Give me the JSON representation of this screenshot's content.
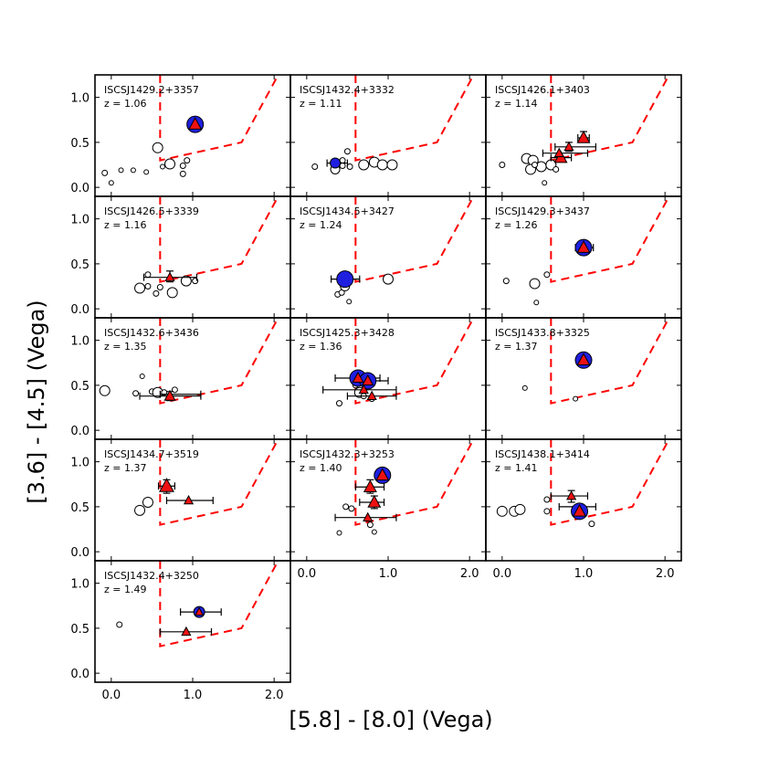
{
  "chart_data": {
    "type": "scatter",
    "xlabel": "[5.8] - [8.0] (Vega)",
    "ylabel": "[3.6] - [4.5] (Vega)",
    "xlim": [
      -0.2,
      2.2
    ],
    "ylim": [
      -0.1,
      1.25
    ],
    "xticks": [
      0.0,
      1.0,
      2.0
    ],
    "yticks": [
      0.0,
      0.5,
      1.0
    ],
    "xtick_labels": [
      "0.0",
      "1.0",
      "2.0"
    ],
    "ytick_labels": [
      "0.0",
      "0.5",
      "1.0"
    ],
    "selection_wedge": [
      [
        0.6,
        1.25
      ],
      [
        0.6,
        0.3
      ],
      [
        1.6,
        0.5
      ],
      [
        2.05,
        1.25
      ]
    ],
    "colors": {
      "wedge": "#ff0000",
      "agn_circle": "#1f1fe0",
      "agn_triangle": "#ee1111",
      "open": "#ffffff"
    },
    "panels": [
      {
        "name": "ISCSJ1429.2+3357",
        "z": "z = 1.06",
        "open": [
          [
            -0.08,
            0.16,
            3
          ],
          [
            0.0,
            0.05,
            2.5
          ],
          [
            0.12,
            0.19,
            2.5
          ],
          [
            0.27,
            0.19,
            2.5
          ],
          [
            0.43,
            0.17,
            2.5
          ],
          [
            0.57,
            0.44,
            5.5
          ],
          [
            0.63,
            0.23,
            2.5
          ],
          [
            0.72,
            0.26,
            5.5
          ],
          [
            0.88,
            0.24,
            3
          ],
          [
            0.88,
            0.15,
            3
          ],
          [
            0.93,
            0.3,
            3
          ]
        ],
        "blue": [
          [
            1.03,
            0.7,
            9
          ]
        ],
        "red": [
          [
            1.03,
            0.7,
            7
          ]
        ],
        "xerr": [],
        "yerr": []
      },
      {
        "name": "ISCSJ1432.4+3332",
        "z": "z = 1.11",
        "open": [
          [
            0.1,
            0.23,
            3
          ],
          [
            0.35,
            0.2,
            5
          ],
          [
            0.44,
            0.24,
            3
          ],
          [
            0.44,
            0.3,
            3
          ],
          [
            0.53,
            0.23,
            3
          ],
          [
            0.5,
            0.4,
            3
          ],
          [
            0.7,
            0.25,
            5.5
          ],
          [
            0.83,
            0.28,
            5.5
          ],
          [
            0.93,
            0.25,
            5.5
          ],
          [
            1.05,
            0.25,
            5.5
          ]
        ],
        "blue": [
          [
            0.35,
            0.27,
            5.5
          ]
        ],
        "red": [],
        "xerr": [
          [
            0.25,
            0.5,
            0.27
          ]
        ],
        "yerr": []
      },
      {
        "name": "ISCSJ1426.1+3403",
        "z": "z = 1.14",
        "open": [
          [
            0.0,
            0.25,
            3
          ],
          [
            0.3,
            0.32,
            5.5
          ],
          [
            0.38,
            0.3,
            5.5
          ],
          [
            0.35,
            0.2,
            5.5
          ],
          [
            0.48,
            0.23,
            5.5
          ],
          [
            0.6,
            0.25,
            5.5
          ],
          [
            0.52,
            0.05,
            2.5
          ],
          [
            0.66,
            0.2,
            3
          ],
          [
            0.4,
            0.25,
            3
          ]
        ],
        "blue": [],
        "red": [
          [
            1.0,
            0.55,
            7
          ],
          [
            0.82,
            0.45,
            5
          ],
          [
            0.72,
            0.33,
            7
          ],
          [
            0.7,
            0.38,
            5
          ]
        ],
        "xerr": [
          [
            0.93,
            1.07,
            0.55
          ],
          [
            0.5,
            1.05,
            0.38
          ],
          [
            0.65,
            1.15,
            0.45
          ],
          [
            0.6,
            0.85,
            0.33
          ]
        ],
        "yerr": [
          [
            1.0,
            0.5,
            0.62
          ],
          [
            0.82,
            0.4,
            0.5
          ]
        ]
      },
      {
        "name": "ISCSJ1426.5+3339",
        "z": "z = 1.16",
        "open": [
          [
            0.35,
            0.23,
            5.5
          ],
          [
            0.45,
            0.25,
            3
          ],
          [
            0.45,
            0.38,
            3
          ],
          [
            0.55,
            0.17,
            3
          ],
          [
            0.6,
            0.24,
            3
          ],
          [
            0.75,
            0.18,
            5.5
          ],
          [
            0.92,
            0.31,
            5.5
          ],
          [
            1.03,
            0.31,
            3
          ]
        ],
        "blue": [],
        "red": [
          [
            0.72,
            0.35,
            5
          ]
        ],
        "xerr": [
          [
            0.4,
            1.05,
            0.35
          ]
        ],
        "yerr": [
          [
            0.72,
            0.3,
            0.42
          ]
        ]
      },
      {
        "name": "ISCSJ1434.5+3427",
        "z": "z = 1.24",
        "open": [
          [
            0.38,
            0.16,
            3
          ],
          [
            0.43,
            0.18,
            3
          ],
          [
            0.52,
            0.08,
            2.5
          ],
          [
            0.47,
            0.25,
            5
          ],
          [
            1.0,
            0.33,
            5.5
          ]
        ],
        "blue": [
          [
            0.47,
            0.33,
            9
          ]
        ],
        "red": [],
        "xerr": [
          [
            0.3,
            0.65,
            0.33
          ]
        ],
        "yerr": []
      },
      {
        "name": "ISCSJ1429.3+3437",
        "z": "z = 1.26",
        "open": [
          [
            0.05,
            0.31,
            3
          ],
          [
            0.4,
            0.28,
            5.5
          ],
          [
            0.42,
            0.07,
            2.5
          ],
          [
            0.55,
            0.38,
            3
          ]
        ],
        "blue": [
          [
            1.0,
            0.68,
            9
          ]
        ],
        "red": [
          [
            1.0,
            0.68,
            7
          ]
        ],
        "xerr": [
          [
            0.9,
            1.12,
            0.68
          ]
        ],
        "yerr": []
      },
      {
        "name": "ISCSJ1432.6+3436",
        "z": "z = 1.35",
        "open": [
          [
            -0.08,
            0.44,
            5.5
          ],
          [
            0.3,
            0.41,
            3
          ],
          [
            0.38,
            0.6,
            2.5
          ],
          [
            0.5,
            0.43,
            3
          ],
          [
            0.57,
            0.42,
            5.5
          ],
          [
            0.65,
            0.42,
            3
          ],
          [
            0.78,
            0.45,
            3
          ]
        ],
        "blue": [],
        "red": [
          [
            0.72,
            0.38,
            6
          ]
        ],
        "xerr": [
          [
            0.35,
            1.1,
            0.38
          ],
          [
            0.6,
            1.1,
            0.4
          ]
        ],
        "yerr": [
          [
            0.72,
            0.33,
            0.43
          ]
        ]
      },
      {
        "name": "ISCSJ1425.3+3428",
        "z": "z = 1.36",
        "open": [
          [
            0.4,
            0.3,
            3
          ],
          [
            0.6,
            0.5,
            3
          ],
          [
            0.65,
            0.42,
            5.5
          ],
          [
            0.8,
            0.35,
            3
          ],
          [
            0.7,
            0.38,
            3
          ]
        ],
        "blue": [
          [
            0.63,
            0.58,
            9
          ],
          [
            0.75,
            0.55,
            9
          ]
        ],
        "red": [
          [
            0.63,
            0.58,
            6
          ],
          [
            0.75,
            0.55,
            6
          ],
          [
            0.7,
            0.45,
            5
          ],
          [
            0.8,
            0.38,
            5
          ]
        ],
        "xerr": [
          [
            0.35,
            0.9,
            0.58
          ],
          [
            0.6,
            1.0,
            0.55
          ],
          [
            0.2,
            1.1,
            0.45
          ],
          [
            0.5,
            1.1,
            0.38
          ]
        ],
        "yerr": [
          [
            0.63,
            0.5,
            0.66
          ],
          [
            0.75,
            0.48,
            0.62
          ]
        ]
      },
      {
        "name": "ISCSJ1433.8+3325",
        "z": "z = 1.37",
        "open": [
          [
            0.28,
            0.47,
            2.5
          ],
          [
            0.9,
            0.35,
            2.5
          ]
        ],
        "blue": [
          [
            1.0,
            0.78,
            9
          ]
        ],
        "red": [
          [
            1.0,
            0.78,
            7
          ]
        ],
        "xerr": [],
        "yerr": []
      },
      {
        "name": "ISCSJ1434.7+3519",
        "z": "z = 1.37",
        "open": [
          [
            0.35,
            0.46,
            5.5
          ],
          [
            0.45,
            0.55,
            5.5
          ]
        ],
        "blue": [],
        "red": [
          [
            0.68,
            0.73,
            8
          ],
          [
            0.95,
            0.57,
            5
          ]
        ],
        "xerr": [
          [
            0.58,
            0.78,
            0.73
          ],
          [
            0.68,
            1.25,
            0.57
          ]
        ],
        "yerr": [
          [
            0.68,
            0.65,
            0.8
          ]
        ]
      },
      {
        "name": "ISCSJ1432.3+3253",
        "z": "z = 1.40",
        "open": [
          [
            0.4,
            0.21,
            2.5
          ],
          [
            0.48,
            0.5,
            3
          ],
          [
            0.55,
            0.48,
            3
          ],
          [
            0.78,
            0.3,
            3
          ],
          [
            0.83,
            0.22,
            2.5
          ]
        ],
        "blue": [
          [
            0.93,
            0.85,
            9
          ]
        ],
        "red": [
          [
            0.93,
            0.85,
            7
          ],
          [
            0.78,
            0.72,
            7
          ],
          [
            0.83,
            0.55,
            7
          ],
          [
            0.75,
            0.38,
            5
          ]
        ],
        "xerr": [
          [
            0.6,
            0.95,
            0.72
          ],
          [
            0.65,
            0.95,
            0.55
          ],
          [
            0.35,
            1.1,
            0.38
          ]
        ],
        "yerr": [
          [
            0.78,
            0.65,
            0.8
          ],
          [
            0.83,
            0.48,
            0.62
          ],
          [
            0.93,
            0.8,
            0.9
          ]
        ]
      },
      {
        "name": "ISCSJ1438.1+3414",
        "z": "z = 1.41",
        "open": [
          [
            0.0,
            0.45,
            5.5
          ],
          [
            0.15,
            0.45,
            5.5
          ],
          [
            0.22,
            0.47,
            5.5
          ],
          [
            0.55,
            0.58,
            3
          ],
          [
            0.55,
            0.45,
            3
          ],
          [
            1.1,
            0.31,
            3
          ]
        ],
        "blue": [
          [
            0.95,
            0.45,
            9
          ]
        ],
        "red": [
          [
            0.95,
            0.45,
            7
          ],
          [
            0.85,
            0.62,
            5
          ]
        ],
        "xerr": [
          [
            0.6,
            1.05,
            0.62
          ],
          [
            0.7,
            1.15,
            0.5
          ]
        ],
        "yerr": [
          [
            0.85,
            0.55,
            0.68
          ]
        ]
      },
      {
        "name": "ISCSJ1432.4+3250",
        "z": "z = 1.49",
        "open": [
          [
            0.1,
            0.54,
            3
          ]
        ],
        "blue": [
          [
            1.08,
            0.68,
            6
          ]
        ],
        "red": [
          [
            1.08,
            0.68,
            4.5
          ],
          [
            0.92,
            0.46,
            5
          ]
        ],
        "xerr": [
          [
            0.85,
            1.35,
            0.68
          ],
          [
            0.6,
            1.23,
            0.46
          ]
        ],
        "yerr": []
      }
    ]
  }
}
